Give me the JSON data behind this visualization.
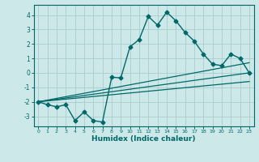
{
  "xlabel": "Humidex (Indice chaleur)",
  "ylabel": "",
  "xlim": [
    -0.5,
    23.5
  ],
  "ylim": [
    -3.7,
    4.7
  ],
  "xticks": [
    0,
    1,
    2,
    3,
    4,
    5,
    6,
    7,
    8,
    9,
    10,
    11,
    12,
    13,
    14,
    15,
    16,
    17,
    18,
    19,
    20,
    21,
    22,
    23
  ],
  "yticks": [
    -3,
    -2,
    -1,
    0,
    1,
    2,
    3,
    4
  ],
  "background_color": "#cce8e8",
  "grid_color": "#aacccc",
  "line_color": "#006868",
  "lines": [
    {
      "x": [
        0,
        1,
        2,
        3,
        4,
        5,
        6,
        7,
        8,
        9,
        10,
        11,
        12,
        13,
        14,
        15,
        16,
        17,
        18,
        19,
        20,
        21,
        22,
        23
      ],
      "y": [
        -2.0,
        -2.2,
        -2.35,
        -2.2,
        -3.3,
        -2.7,
        -3.3,
        -3.4,
        -0.3,
        -0.35,
        1.8,
        2.3,
        3.9,
        3.3,
        4.2,
        3.6,
        2.8,
        2.2,
        1.3,
        0.6,
        0.5,
        1.3,
        1.0,
        0.0
      ],
      "marker": "D",
      "markersize": 2.5,
      "linewidth": 1.0
    },
    {
      "x": [
        0,
        23
      ],
      "y": [
        -2.0,
        0.0
      ],
      "marker": null,
      "linewidth": 0.9
    },
    {
      "x": [
        0,
        23
      ],
      "y": [
        -2.0,
        -0.6
      ],
      "marker": null,
      "linewidth": 0.9
    },
    {
      "x": [
        0,
        23
      ],
      "y": [
        -2.0,
        0.7
      ],
      "marker": null,
      "linewidth": 0.9
    }
  ]
}
